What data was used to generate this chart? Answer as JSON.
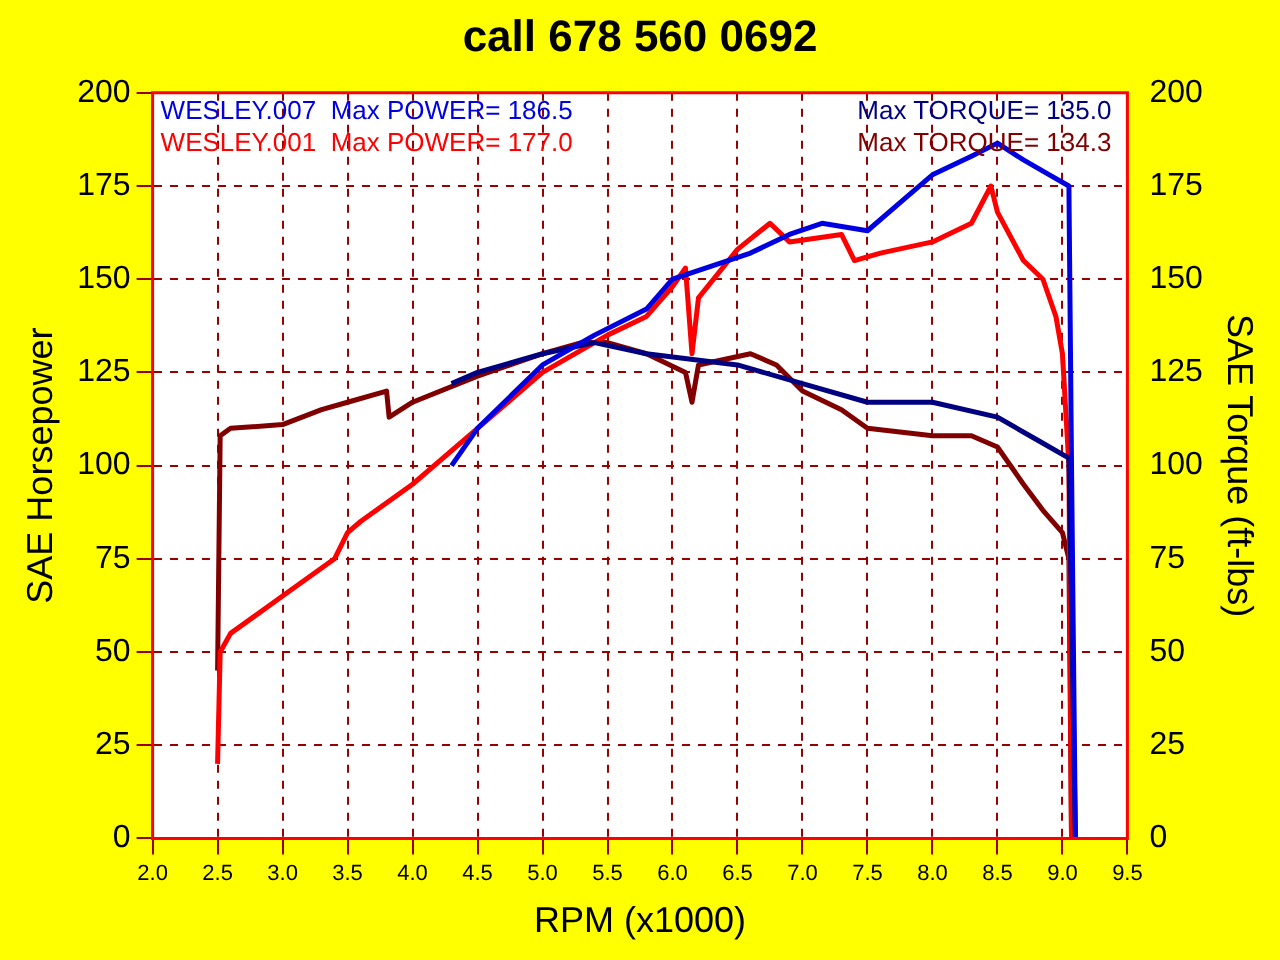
{
  "chart_data": {
    "type": "line",
    "title": "call 678 560 0692",
    "xlabel": "RPM (x1000)",
    "ylabel": "SAE Horsepower",
    "y2label": "SAE Torque (ft-lbs)",
    "xlim": [
      2.0,
      9.5
    ],
    "xticks": [
      {
        "value": 2.0,
        "label": "2.0"
      },
      {
        "value": 2.5,
        "label": "2.5"
      },
      {
        "value": 3.0,
        "label": "3.0"
      },
      {
        "value": 3.5,
        "label": "3.5"
      },
      {
        "value": 4.0,
        "label": "4.0"
      },
      {
        "value": 4.5,
        "label": "4.5"
      },
      {
        "value": 5.0,
        "label": "5.0"
      },
      {
        "value": 5.5,
        "label": "5.5"
      },
      {
        "value": 6.0,
        "label": "6.0"
      },
      {
        "value": 6.5,
        "label": "6.5"
      },
      {
        "value": 7.0,
        "label": "7.0"
      },
      {
        "value": 7.5,
        "label": "7.5"
      },
      {
        "value": 8.0,
        "label": "8.0"
      },
      {
        "value": 8.5,
        "label": "8.5"
      },
      {
        "value": 9.0,
        "label": "9.0"
      },
      {
        "value": 9.5,
        "label": "9.5"
      }
    ],
    "ylim": [
      0,
      200
    ],
    "yticks": [
      0,
      25,
      50,
      75,
      100,
      125,
      150,
      175,
      200
    ],
    "y2lim": [
      0,
      200
    ],
    "y2ticks": [
      0,
      25,
      50,
      75,
      100,
      125,
      150,
      175,
      200
    ],
    "grid": true,
    "legend": "top",
    "line_style": "solid",
    "marker": "none",
    "series": [
      {
        "name": "WESLEY.007  Max POWER= 186.5",
        "color": "#0000e0",
        "x": [
          4.3,
          4.5,
          5.0,
          5.4,
          5.8,
          6.0,
          6.6,
          6.9,
          7.15,
          7.5,
          7.8,
          8.0,
          8.3,
          8.5,
          8.7,
          8.9,
          9.05,
          9.07,
          9.1
        ],
        "values": [
          100,
          110,
          127,
          135,
          142,
          150,
          157,
          162,
          165,
          163,
          172,
          178,
          183,
          186.5,
          182,
          178,
          175,
          100,
          0
        ]
      },
      {
        "name": "Max TORQUE= 135.0",
        "color": "#000080",
        "axis": "y2",
        "x": [
          4.3,
          4.5,
          5.0,
          5.4,
          5.8,
          6.5,
          7.0,
          7.5,
          8.0,
          8.5,
          8.8,
          9.05,
          9.1
        ],
        "values": [
          122,
          125,
          130,
          133,
          130,
          127,
          122,
          117,
          117,
          113,
          107,
          102,
          0
        ]
      },
      {
        "name": "WESLEY.001  Max POWER= 177.0",
        "color": "#ff0000",
        "x": [
          2.5,
          2.52,
          2.6,
          3.0,
          3.4,
          3.5,
          3.6,
          4.0,
          4.5,
          5.0,
          5.5,
          5.8,
          6.0,
          6.1,
          6.15,
          6.2,
          6.5,
          6.75,
          6.9,
          7.3,
          7.4,
          7.6,
          8.0,
          8.3,
          8.45,
          8.5,
          8.7,
          8.85,
          8.95,
          9.0,
          9.05,
          9.07
        ],
        "values": [
          20,
          50,
          55,
          65,
          75,
          82,
          85,
          95,
          110,
          125,
          135,
          140,
          148,
          153,
          130,
          145,
          158,
          165,
          160,
          162,
          155,
          157,
          160,
          165,
          175,
          168,
          155,
          150,
          140,
          130,
          100,
          0
        ]
      },
      {
        "name": "Max TORQUE= 134.3",
        "color": "#800000",
        "axis": "y2",
        "x": [
          2.5,
          2.52,
          2.6,
          3.0,
          3.3,
          3.5,
          3.8,
          3.82,
          4.0,
          4.5,
          5.0,
          5.3,
          5.5,
          5.8,
          6.1,
          6.15,
          6.2,
          6.6,
          6.8,
          7.0,
          7.3,
          7.5,
          8.0,
          8.3,
          8.5,
          8.7,
          8.85,
          9.0,
          9.05,
          9.07
        ],
        "values": [
          45,
          108,
          110,
          111,
          115,
          117,
          120,
          113,
          117,
          124,
          130,
          133,
          133,
          130,
          125,
          117,
          127,
          130,
          127,
          120,
          115,
          110,
          108,
          108,
          105,
          95,
          88,
          82,
          75,
          0
        ]
      }
    ]
  }
}
